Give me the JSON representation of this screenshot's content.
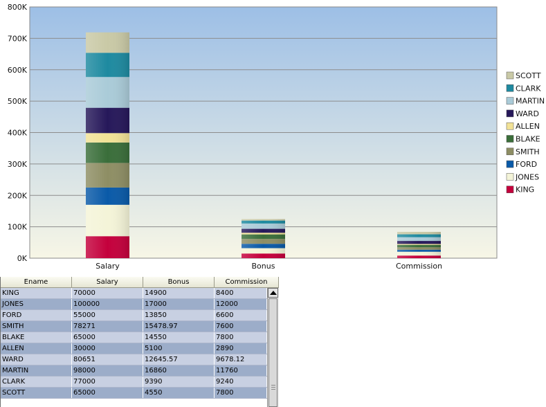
{
  "chart_data": {
    "type": "bar",
    "stacked": true,
    "categories": [
      "Salary",
      "Bonus",
      "Commission"
    ],
    "y_ticks": [
      "0K",
      "100K",
      "200K",
      "300K",
      "400K",
      "500K",
      "600K",
      "700K",
      "800K"
    ],
    "ylim": [
      0,
      800000
    ],
    "grid": true,
    "legend_position": "right",
    "series": [
      {
        "name": "KING",
        "color": "#c4003c",
        "values": [
          70000,
          14900,
          8400
        ]
      },
      {
        "name": "JONES",
        "color": "#f4f4d8",
        "values": [
          100000,
          17000,
          12000
        ]
      },
      {
        "name": "FORD",
        "color": "#0a5aa8",
        "values": [
          55000,
          13850,
          6600
        ]
      },
      {
        "name": "SMITH",
        "color": "#8e8e64",
        "values": [
          78271,
          15478.97,
          7600
        ]
      },
      {
        "name": "BLAKE",
        "color": "#3a6e3a",
        "values": [
          65000,
          14550,
          7800
        ]
      },
      {
        "name": "ALLEN",
        "color": "#f2e296",
        "values": [
          30000,
          5100,
          2890
        ]
      },
      {
        "name": "WARD",
        "color": "#26185a",
        "values": [
          80651,
          12645.57,
          9678.12
        ]
      },
      {
        "name": "MARTIN",
        "color": "#aacbd8",
        "values": [
          98000,
          16860,
          11760
        ]
      },
      {
        "name": "CLARK",
        "color": "#1e8aa0",
        "values": [
          77000,
          9390,
          9240
        ]
      },
      {
        "name": "SCOTT",
        "color": "#c9c9a6",
        "values": [
          65000,
          4550,
          7800
        ]
      }
    ]
  },
  "table": {
    "headers": [
      "Ename",
      "Salary",
      "Bonus",
      "Commission"
    ],
    "rows": [
      [
        "KING",
        "70000",
        "14900",
        "8400"
      ],
      [
        "JONES",
        "100000",
        "17000",
        "12000"
      ],
      [
        "FORD",
        "55000",
        "13850",
        "6600"
      ],
      [
        "SMITH",
        "78271",
        "15478.97",
        "7600"
      ],
      [
        "BLAKE",
        "65000",
        "14550",
        "7800"
      ],
      [
        "ALLEN",
        "30000",
        "5100",
        "2890"
      ],
      [
        "WARD",
        "80651",
        "12645.57",
        "9678.12"
      ],
      [
        "MARTIN",
        "98000",
        "16860",
        "11760"
      ],
      [
        "CLARK",
        "77000",
        "9390",
        "9240"
      ],
      [
        "SCOTT",
        "65000",
        "4550",
        "7800"
      ]
    ]
  }
}
